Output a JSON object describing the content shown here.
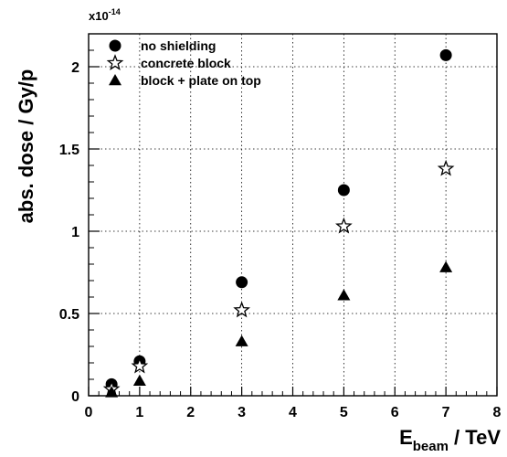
{
  "chart_data": {
    "type": "scatter",
    "title": "",
    "xlabel": {
      "main": "E",
      "sub": "beam",
      "rest": " / TeV"
    },
    "ylabel": "abs. dose / Gy/p",
    "y_multiplier": {
      "base": "x10",
      "exponent": "-14"
    },
    "xlim": [
      0,
      8
    ],
    "ylim": [
      0,
      2.2
    ],
    "xticks": [
      "0",
      "1",
      "2",
      "3",
      "4",
      "5",
      "6",
      "7",
      "8"
    ],
    "yticks": [
      "0",
      "0.5",
      "1",
      "1.5",
      "2"
    ],
    "grid": true,
    "legend_position": "top-left",
    "series": [
      {
        "name": "no shielding",
        "marker": "circle",
        "color": "#000000",
        "points": [
          [
            0.45,
            0.07
          ],
          [
            1,
            0.21
          ],
          [
            3,
            0.69
          ],
          [
            5,
            1.25
          ],
          [
            7,
            2.07
          ]
        ]
      },
      {
        "name": "concrete block",
        "marker": "star-open",
        "color": "#000000",
        "points": [
          [
            0.45,
            0.04
          ],
          [
            1,
            0.18
          ],
          [
            3,
            0.52
          ],
          [
            5,
            1.03
          ],
          [
            7,
            1.38
          ]
        ]
      },
      {
        "name": "block + plate on top",
        "marker": "triangle",
        "color": "#000000",
        "points": [
          [
            0.45,
            0.02
          ],
          [
            1,
            0.09
          ],
          [
            3,
            0.33
          ],
          [
            5,
            0.61
          ],
          [
            7,
            0.78
          ]
        ]
      }
    ]
  }
}
